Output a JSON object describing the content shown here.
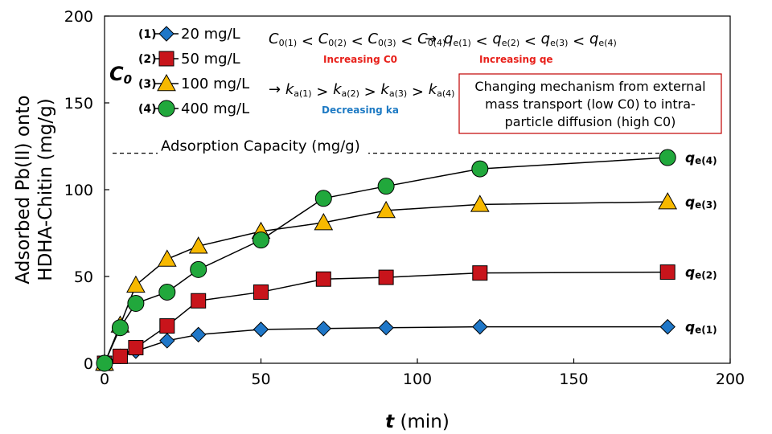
{
  "chart_data": {
    "type": "line",
    "xlabel": "t (min)",
    "xlabel_var": "t",
    "xlabel_unit": " (min)",
    "ylabel_lines": [
      "Adsorbed Pb(II) onto",
      "HDHA-Chitin (mg/g)"
    ],
    "xlim": [
      0,
      200
    ],
    "ylim": [
      0,
      200
    ],
    "x_ticks": [
      0,
      50,
      100,
      150,
      200
    ],
    "y_ticks": [
      0,
      50,
      100,
      150,
      200
    ],
    "grid": false,
    "x": [
      0,
      5,
      10,
      20,
      30,
      50,
      70,
      90,
      120,
      180
    ],
    "series": [
      {
        "id": "(1)",
        "name": "20 mg/L",
        "marker": "diamond",
        "color": "#1f77c8",
        "values": [
          0,
          4,
          7,
          13,
          16.5,
          19.5,
          20,
          20.5,
          21,
          21
        ]
      },
      {
        "id": "(2)",
        "name": "50 mg/L",
        "marker": "square",
        "color": "#c8141b",
        "values": [
          0,
          4,
          9,
          21.5,
          36,
          41,
          48.5,
          49.5,
          52,
          52.5
        ]
      },
      {
        "id": "(3)",
        "name": "100 mg/L",
        "marker": "triangle",
        "color": "#f7b900",
        "values": [
          0,
          22,
          45,
          60,
          67.5,
          76,
          81,
          88,
          91.5,
          93
        ]
      },
      {
        "id": "(4)",
        "name": "400 mg/L",
        "marker": "circle",
        "color": "#21a83c",
        "values": [
          0,
          20.5,
          34.5,
          41,
          54,
          71,
          95,
          102,
          112,
          118.5
        ]
      }
    ],
    "reference_line": {
      "value": 121,
      "label": "Adsorption Capacity (mg/g)"
    },
    "end_labels": [
      {
        "base": "q",
        "sub": "e(4)"
      },
      {
        "base": "q",
        "sub": "e(3)"
      },
      {
        "base": "q",
        "sub": "e(2)"
      },
      {
        "base": "q",
        "sub": "e(1)"
      }
    ]
  },
  "annotations": {
    "c0_symbol": "C",
    "c0_symbol_sub": "0",
    "c0_relation": {
      "terms": [
        "0(1)",
        "0(2)",
        "0(3)",
        "0(4)"
      ],
      "base": "C",
      "separator": "<",
      "arrow": "→"
    },
    "qe_relation": {
      "terms": [
        "e(1)",
        "e(2)",
        "e(3)",
        "e(4)"
      ],
      "base": "q",
      "separator": "<"
    },
    "ka_relation": {
      "arrow": "→",
      "terms": [
        "a(1)",
        "a(2)",
        "a(3)",
        "a(4)"
      ],
      "base": "k",
      "separator": ">"
    },
    "increasing_c0": "Increasing C0",
    "increasing_qe": "Increasing qe",
    "decreasing_ka": "Decreasing ka",
    "mechanism_box": [
      "Changing mechanism from external",
      "mass transport (low C0) to intra-",
      "particle diffusion (high C0)"
    ],
    "colors": {
      "red": "#e8211b",
      "blue": "#1f7bc4",
      "box_border": "#c00000"
    }
  }
}
